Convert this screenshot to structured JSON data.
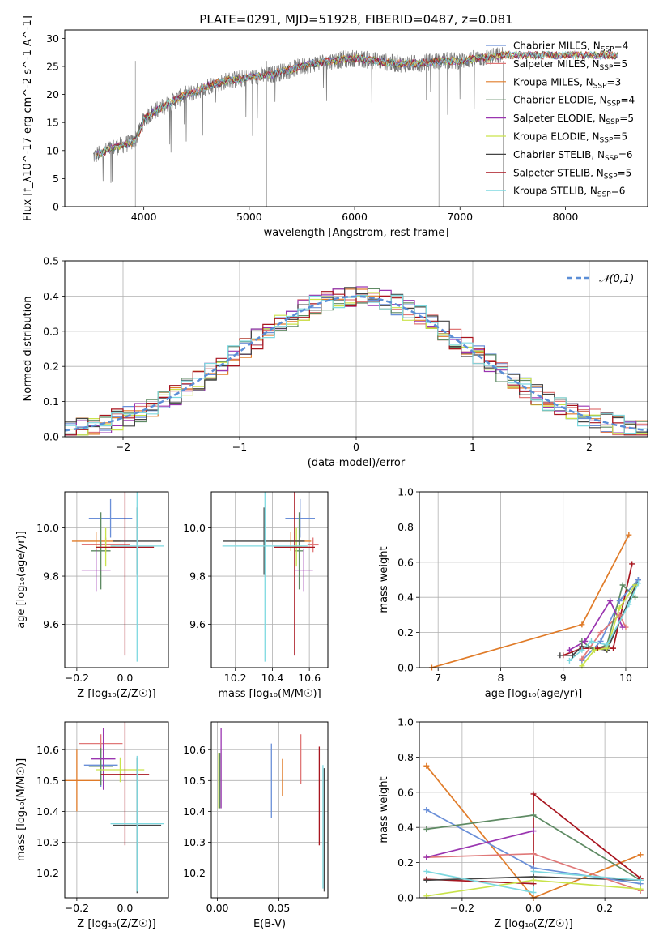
{
  "figure_title": "PLATE=0291, MJD=51928, FIBERID=0487, z=0.081",
  "colors": {
    "Chabrier MILES": "#6a8fd8",
    "Salpeter MILES": "#e07878",
    "Kroupa MILES": "#e07b28",
    "Chabrier ELODIE": "#5e8a63",
    "Salpeter ELODIE": "#9a35b0",
    "Kroupa ELODIE": "#c9e34a",
    "Chabrier STELIB": "#444444",
    "Salpeter STELIB": "#a8141e",
    "Kroupa STELIB": "#7ed9e0"
  },
  "chart_data": [
    {
      "id": "spectrum",
      "type": "line",
      "xlabel": "wavelength [Angstrom, rest frame]",
      "ylabel": "Flux [f_λ10^-17 erg cm^-2 s^-1 A^-1]",
      "xlim": [
        3250,
        8780
      ],
      "ylim": [
        0,
        31.5
      ],
      "xticks": [
        4000,
        5000,
        6000,
        7000,
        8000
      ],
      "yticks": [
        0,
        5,
        10,
        15,
        20,
        25,
        30
      ],
      "legend_loc": "upper right",
      "legend": [
        {
          "label": "Chabrier MILES",
          "nssp": "4"
        },
        {
          "label": "Salpeter MILES",
          "nssp": "5"
        },
        {
          "label": "Kroupa MILES",
          "nssp": "3"
        },
        {
          "label": "Chabrier ELODIE",
          "nssp": "4"
        },
        {
          "label": "Salpeter ELODIE",
          "nssp": "5"
        },
        {
          "label": "Kroupa ELODIE",
          "nssp": "5"
        },
        {
          "label": "Chabrier STELIB",
          "nssp": "6"
        },
        {
          "label": "Salpeter STELIB",
          "nssp": "5"
        },
        {
          "label": "Kroupa STELIB",
          "nssp": "6"
        }
      ],
      "continuum": {
        "x": [
          3520,
          3600,
          3700,
          3800,
          3900,
          3950,
          4000,
          4100,
          4200,
          4300,
          4400,
          4500,
          4600,
          4800,
          5000,
          5200,
          5400,
          5600,
          5800,
          6000,
          6200,
          6400,
          6600,
          6800,
          7000,
          7200,
          7410
        ],
        "y": [
          9,
          9.5,
          10.5,
          11,
          11.5,
          13,
          15.5,
          17,
          18,
          19,
          20,
          20.5,
          21.5,
          22.5,
          23,
          23.5,
          24.5,
          25.5,
          26,
          26.5,
          26,
          25.5,
          25.5,
          26,
          26,
          26.5,
          27
        ]
      },
      "model_range": [
        3520,
        8500
      ]
    },
    {
      "id": "residuals",
      "type": "histogram",
      "xlabel": "(data-model)/error",
      "ylabel": "Normed distribution",
      "xlim": [
        -2.5,
        2.5
      ],
      "ylim": [
        0,
        0.5
      ],
      "xticks": [
        -2,
        -1,
        0,
        1,
        2
      ],
      "yticks": [
        0,
        0.1,
        0.2,
        0.3,
        0.4,
        0.5
      ],
      "bin_width": 0.1,
      "legend_loc": "upper right",
      "reference_label": "𝒩(0,1)",
      "reference_color": "#5b8ed6"
    },
    {
      "id": "age-vs-Z",
      "type": "errorbar",
      "xlabel": "Z [log₁₀(Z/Z☉)]",
      "ylabel": "age  [log₁₀(age/yr)]",
      "xlim": [
        -0.25,
        0.18
      ],
      "ylim": [
        9.42,
        10.15
      ],
      "xticks": [
        -0.2,
        0.0
      ],
      "yticks": [
        9.6,
        9.8,
        10.0
      ],
      "points": [
        {
          "model": "Chabrier MILES",
          "x": -0.06,
          "y": 10.04,
          "xerr": 0.09,
          "yerr": 0.08
        },
        {
          "model": "Salpeter MILES",
          "x": -0.08,
          "y": 9.93,
          "xerr": 0.1,
          "yerr": 0.03
        },
        {
          "model": "Kroupa MILES",
          "x": -0.12,
          "y": 9.945,
          "xerr": 0.1,
          "yerr": 0.04
        },
        {
          "model": "Chabrier ELODIE",
          "x": -0.1,
          "y": 9.905,
          "xerr": 0.04,
          "yerr": 0.16
        },
        {
          "model": "Salpeter ELODIE",
          "x": -0.12,
          "y": 9.825,
          "xerr": 0.06,
          "yerr": 0.09
        },
        {
          "model": "Kroupa ELODIE",
          "x": -0.08,
          "y": 9.92,
          "xerr": 0.04,
          "yerr": 0.08
        },
        {
          "model": "Chabrier STELIB",
          "x": 0.05,
          "y": 9.945,
          "xerr": 0.1,
          "yerr": 0.14
        },
        {
          "model": "Salpeter STELIB",
          "x": 0.0,
          "y": 9.92,
          "xerr": 0.12,
          "yerr": 0.45
        },
        {
          "model": "Kroupa STELIB",
          "x": 0.05,
          "y": 9.925,
          "xerr": 0.11,
          "yerr": 0.48
        }
      ]
    },
    {
      "id": "age-vs-mass",
      "type": "errorbar",
      "xlabel": "mass [log₁₀(M/M☉)]",
      "ylabel": "",
      "xlim": [
        10.07,
        10.7
      ],
      "ylim": [
        9.42,
        10.15
      ],
      "xticks": [
        10.2,
        10.4,
        10.6
      ],
      "yticks": [
        9.6,
        9.8,
        10.0
      ],
      "points": [
        {
          "model": "Chabrier MILES",
          "x": 10.55,
          "y": 10.04,
          "xerr": 0.08,
          "yerr": 0.08
        },
        {
          "model": "Salpeter MILES",
          "x": 10.62,
          "y": 9.93,
          "xerr": 0.03,
          "yerr": 0.03
        },
        {
          "model": "Kroupa MILES",
          "x": 10.5,
          "y": 9.945,
          "xerr": 0.11,
          "yerr": 0.04
        },
        {
          "model": "Chabrier ELODIE",
          "x": 10.545,
          "y": 9.905,
          "xerr": 0.02,
          "yerr": 0.16
        },
        {
          "model": "Salpeter ELODIE",
          "x": 10.57,
          "y": 9.825,
          "xerr": 0.05,
          "yerr": 0.09
        },
        {
          "model": "Kroupa ELODIE",
          "x": 10.53,
          "y": 9.92,
          "xerr": 0.03,
          "yerr": 0.08
        },
        {
          "model": "Chabrier STELIB",
          "x": 10.355,
          "y": 9.945,
          "xerr": 0.22,
          "yerr": 0.14
        },
        {
          "model": "Salpeter STELIB",
          "x": 10.52,
          "y": 9.92,
          "xerr": 0.11,
          "yerr": 0.45
        },
        {
          "model": "Kroupa STELIB",
          "x": 10.36,
          "y": 9.925,
          "xerr": 0.23,
          "yerr": 0.48
        }
      ]
    },
    {
      "id": "weight-vs-age",
      "type": "line",
      "xlabel": "age  [log₁₀(age/yr)]",
      "ylabel": "mass weight",
      "xlim": [
        6.7,
        10.35
      ],
      "ylim": [
        0,
        1.0
      ],
      "xticks": [
        7,
        8,
        9,
        10
      ],
      "yticks": [
        0.0,
        0.2,
        0.4,
        0.6,
        0.8,
        1.0
      ],
      "series": [
        {
          "model": "Kroupa MILES",
          "x": [
            6.9,
            9.3,
            10.05
          ],
          "y": [
            0.0,
            0.245,
            0.755
          ]
        },
        {
          "model": "Salpeter STELIB",
          "x": [
            9.0,
            9.3,
            9.55,
            9.8,
            10.1
          ],
          "y": [
            0.07,
            0.11,
            0.11,
            0.11,
            0.59
          ]
        },
        {
          "model": "Chabrier STELIB",
          "x": [
            8.95,
            9.15,
            9.3,
            9.7,
            10.2
          ],
          "y": [
            0.07,
            0.07,
            0.12,
            0.1,
            0.5
          ]
        },
        {
          "model": "Chabrier MILES",
          "x": [
            9.3,
            9.6,
            9.9,
            10.2
          ],
          "y": [
            0.04,
            0.15,
            0.38,
            0.5
          ]
        },
        {
          "model": "Salpeter MILES",
          "x": [
            9.3,
            9.6,
            9.9,
            10.0
          ],
          "y": [
            0.05,
            0.2,
            0.3,
            0.23
          ]
        },
        {
          "model": "Chabrier ELODIE",
          "x": [
            9.3,
            9.5,
            9.7,
            9.95,
            10.15
          ],
          "y": [
            0.15,
            0.1,
            0.13,
            0.47,
            0.4
          ]
        },
        {
          "model": "Salpeter ELODIE",
          "x": [
            9.1,
            9.35,
            9.75,
            9.95
          ],
          "y": [
            0.1,
            0.15,
            0.38,
            0.23
          ]
        },
        {
          "model": "Kroupa ELODIE",
          "x": [
            9.3,
            9.5,
            9.7,
            9.9,
            10.15
          ],
          "y": [
            0.01,
            0.1,
            0.11,
            0.34,
            0.47
          ]
        },
        {
          "model": "Kroupa STELIB",
          "x": [
            9.1,
            9.3,
            9.45,
            9.7,
            10.05,
            10.2
          ],
          "y": [
            0.04,
            0.1,
            0.15,
            0.13,
            0.36,
            0.48
          ]
        }
      ]
    },
    {
      "id": "mass-vs-Z",
      "type": "errorbar",
      "xlabel": "Z [log₁₀(Z/Z☉)]",
      "ylabel": "mass [log₁₀(M/M☉)]",
      "xlim": [
        -0.25,
        0.18
      ],
      "ylim": [
        10.12,
        10.69
      ],
      "xticks": [
        -0.2,
        0.0
      ],
      "yticks": [
        10.2,
        10.3,
        10.4,
        10.5,
        10.6
      ],
      "points": [
        {
          "model": "Chabrier MILES",
          "x": -0.1,
          "y": 10.55,
          "xerr": 0.07,
          "yerr": 0.07
        },
        {
          "model": "Salpeter MILES",
          "x": -0.1,
          "y": 10.62,
          "xerr": 0.09,
          "yerr": 0.03
        },
        {
          "model": "Kroupa MILES",
          "x": -0.2,
          "y": 10.5,
          "xerr": 0.1,
          "yerr": 0.1
        },
        {
          "model": "Chabrier ELODIE",
          "x": -0.1,
          "y": 10.545,
          "xerr": 0.05,
          "yerr": 0.06
        },
        {
          "model": "Salpeter ELODIE",
          "x": -0.09,
          "y": 10.57,
          "xerr": 0.05,
          "yerr": 0.1
        },
        {
          "model": "Kroupa ELODIE",
          "x": -0.02,
          "y": 10.535,
          "xerr": 0.1,
          "yerr": 0.04
        },
        {
          "model": "Chabrier STELIB",
          "x": 0.05,
          "y": 10.355,
          "xerr": 0.1,
          "yerr": 0.22
        },
        {
          "model": "Salpeter STELIB",
          "x": 0.0,
          "y": 10.52,
          "xerr": 0.1,
          "yerr": 0.23
        },
        {
          "model": "Kroupa STELIB",
          "x": 0.05,
          "y": 10.36,
          "xerr": 0.11,
          "yerr": 0.22
        }
      ]
    },
    {
      "id": "mass-vs-EBV",
      "type": "errorbar",
      "xlabel": "E(B-V)",
      "ylabel": "",
      "xlim": [
        -0.005,
        0.09
      ],
      "ylim": [
        10.12,
        10.69
      ],
      "xticks": [
        0.0,
        0.05
      ],
      "yticks": [
        10.2,
        10.3,
        10.4,
        10.5,
        10.6
      ],
      "points": [
        {
          "model": "Chabrier MILES",
          "x": 0.044,
          "y": 10.5,
          "xerr": 0.0,
          "yerr": 0.12
        },
        {
          "model": "Salpeter MILES",
          "x": 0.068,
          "y": 10.57,
          "xerr": 0.0,
          "yerr": 0.08
        },
        {
          "model": "Kroupa MILES",
          "x": 0.053,
          "y": 10.51,
          "xerr": 0.0,
          "yerr": 0.06
        },
        {
          "model": "Chabrier ELODIE",
          "x": 0.002,
          "y": 10.5,
          "xerr": 0.0,
          "yerr": 0.09
        },
        {
          "model": "Salpeter ELODIE",
          "x": 0.003,
          "y": 10.54,
          "xerr": 0.0,
          "yerr": 0.13
        },
        {
          "model": "Kroupa ELODIE",
          "x": 0.001,
          "y": 10.5,
          "xerr": 0.0,
          "yerr": 0.09
        },
        {
          "model": "Chabrier STELIB",
          "x": 0.087,
          "y": 10.34,
          "xerr": 0.0,
          "yerr": 0.2
        },
        {
          "model": "Salpeter STELIB",
          "x": 0.083,
          "y": 10.45,
          "xerr": 0.0,
          "yerr": 0.16
        },
        {
          "model": "Kroupa STELIB",
          "x": 0.086,
          "y": 10.35,
          "xerr": 0.0,
          "yerr": 0.2
        }
      ]
    },
    {
      "id": "weight-vs-Z",
      "type": "line",
      "xlabel": "Z [log₁₀(Z/Z☉)]",
      "ylabel": "mass weight",
      "xlim": [
        -0.32,
        0.32
      ],
      "ylim": [
        0,
        1.0
      ],
      "xticks": [
        -0.2,
        0.0,
        0.2
      ],
      "yticks": [
        0.0,
        0.2,
        0.4,
        0.6,
        0.8,
        1.0
      ],
      "series": [
        {
          "model": "Kroupa MILES",
          "x": [
            -0.3,
            0.0,
            0.3
          ],
          "y": [
            0.75,
            0.0,
            0.245
          ]
        },
        {
          "model": "Salpeter STELIB",
          "x": [
            -0.3,
            0.0,
            0.0,
            0.3
          ],
          "y": [
            0.105,
            0.08,
            0.59,
            0.11
          ]
        },
        {
          "model": "Chabrier STELIB",
          "x": [
            -0.3,
            0.0,
            0.3
          ],
          "y": [
            0.1,
            0.12,
            0.1
          ]
        },
        {
          "model": "Chabrier MILES",
          "x": [
            -0.3,
            0.0,
            0.3
          ],
          "y": [
            0.5,
            0.17,
            0.08
          ]
        },
        {
          "model": "Salpeter MILES",
          "x": [
            -0.3,
            0.0,
            0.3
          ],
          "y": [
            0.23,
            0.25,
            0.04
          ]
        },
        {
          "model": "Chabrier ELODIE",
          "x": [
            -0.3,
            0.0,
            0.3
          ],
          "y": [
            0.39,
            0.47,
            0.1
          ]
        },
        {
          "model": "Salpeter ELODIE",
          "x": [
            -0.3,
            0.0,
            0.0
          ],
          "y": [
            0.23,
            0.38,
            0.38
          ]
        },
        {
          "model": "Kroupa ELODIE",
          "x": [
            -0.3,
            0.0,
            0.3
          ],
          "y": [
            0.01,
            0.1,
            0.05
          ]
        },
        {
          "model": "Kroupa STELIB",
          "x": [
            -0.3,
            0.0,
            0.0,
            0.3
          ],
          "y": [
            0.15,
            0.03,
            0.15,
            0.1
          ]
        }
      ]
    }
  ]
}
